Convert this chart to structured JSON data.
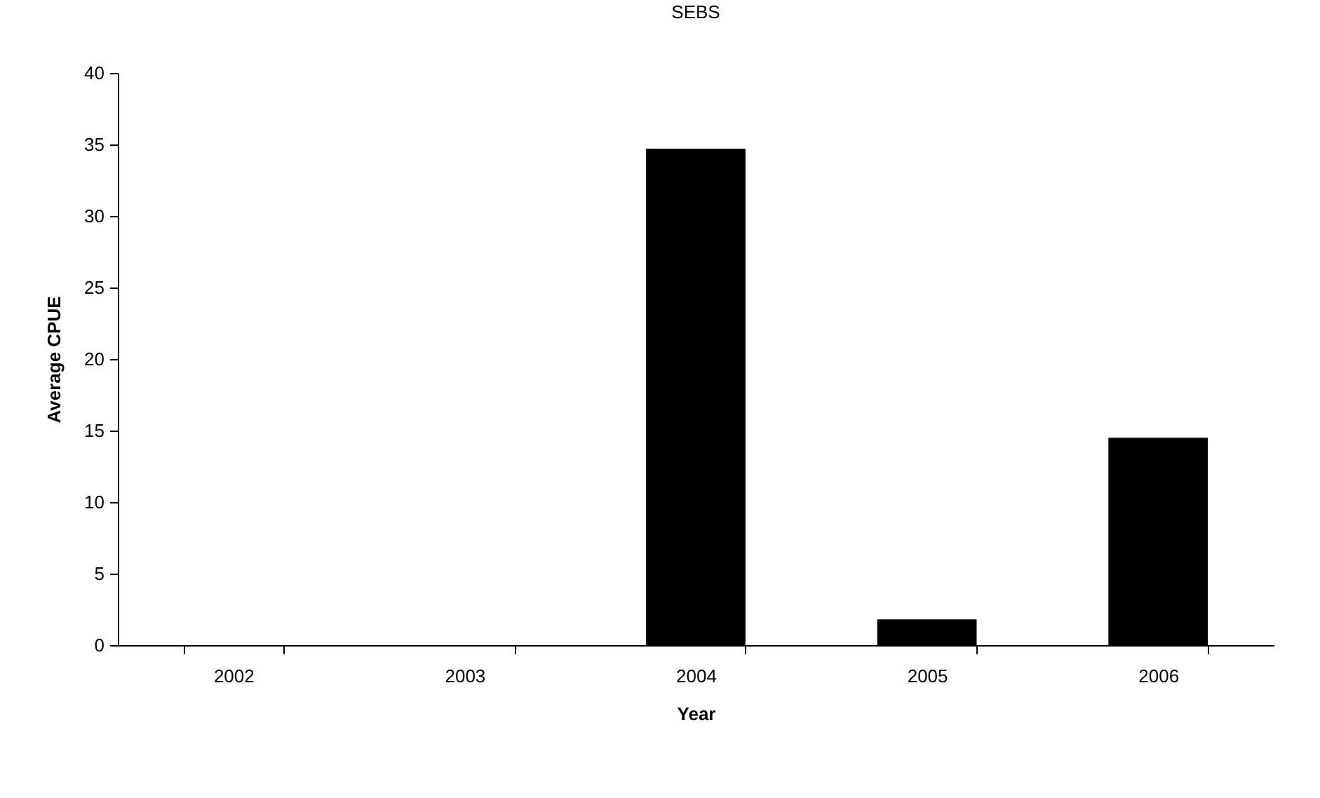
{
  "chart_data": {
    "type": "bar",
    "title": "SEBS",
    "xlabel": "Year",
    "ylabel": "Average CPUE",
    "categories": [
      "2002",
      "2003",
      "2004",
      "2005",
      "2006"
    ],
    "values": [
      0,
      0,
      34.7,
      1.8,
      14.5
    ],
    "color": "#000000",
    "ylim": [
      0,
      40
    ],
    "yticks": [
      0,
      5,
      10,
      15,
      20,
      25,
      30,
      35,
      40
    ],
    "grid": false
  }
}
